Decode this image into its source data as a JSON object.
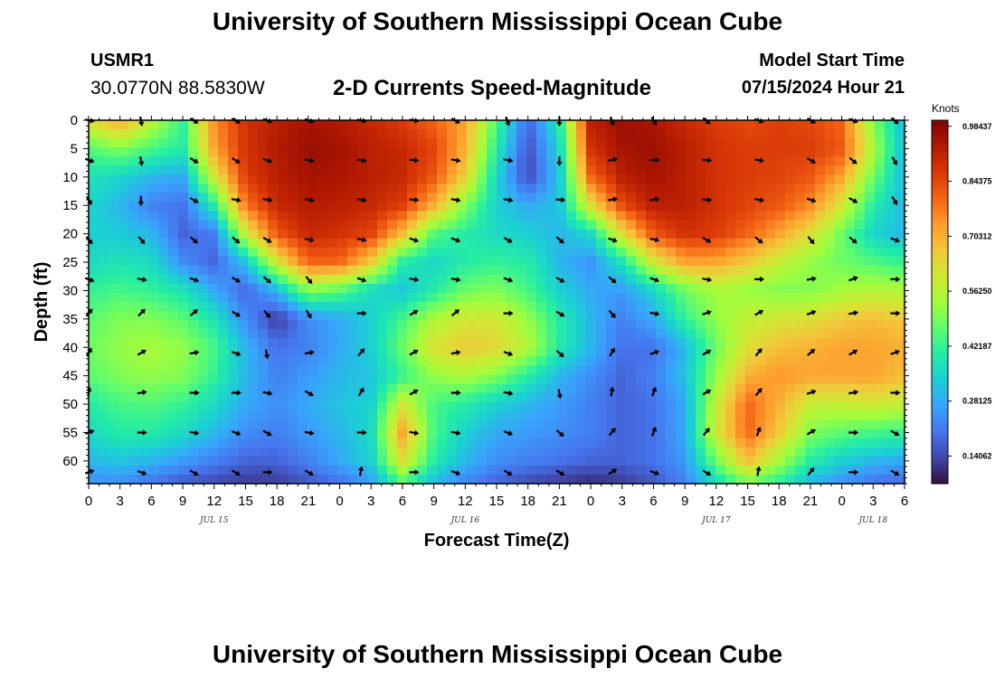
{
  "header": {
    "title": "University of Southern Mississippi Ocean Cube",
    "station_id": "USMR1",
    "station_location": "30.0770N  88.5830W",
    "plot_title": "2-D Currents Speed-Magnitude",
    "model_start_label": "Model Start Time",
    "model_start_value": "07/15/2024 Hour 21"
  },
  "footer": {
    "title": "University of Southern Mississippi Ocean Cube"
  },
  "chart_data": {
    "type": "heatmap",
    "title": "2-D Currents Speed-Magnitude",
    "xlabel": "Forecast Time(Z)",
    "ylabel": "Depth (ft)",
    "x_tick_labels": [
      "0",
      "3",
      "6",
      "9",
      "12",
      "15",
      "18",
      "21",
      "0",
      "3",
      "6",
      "9",
      "12",
      "15",
      "18",
      "21",
      "0",
      "3",
      "6",
      "9",
      "12",
      "15",
      "18",
      "21",
      "0",
      "3",
      "6"
    ],
    "x_date_labels": [
      {
        "label": "JUL 15",
        "tick_index": 4
      },
      {
        "label": "JUL 16",
        "tick_index": 12
      },
      {
        "label": "JUL 17",
        "tick_index": 20
      },
      {
        "label": "JUL 18",
        "tick_index": 25
      }
    ],
    "y_tick_labels": [
      "0",
      "5",
      "10",
      "15",
      "20",
      "25",
      "30",
      "35",
      "40",
      "45",
      "50",
      "55",
      "60"
    ],
    "ylim": [
      0,
      64
    ],
    "colorbar": {
      "unit": "Knots",
      "range": [
        0.07,
        1.0
      ],
      "tick_labels": [
        "0.14062",
        "0.28125",
        "0.42187",
        "0.56250",
        "0.70312",
        "0.84375",
        "0.98437"
      ],
      "tick_values": [
        0.14062,
        0.28125,
        0.42187,
        0.5625,
        0.70312,
        0.84375,
        0.98437
      ],
      "colormap": [
        "#30123b",
        "#4145ab",
        "#4675ed",
        "#39a2fc",
        "#1bcfd4",
        "#24eca6",
        "#61fc6c",
        "#a4fc3b",
        "#d1e834",
        "#f3c63a",
        "#fe9b2d",
        "#f36315",
        "#d93807",
        "#b11901",
        "#7a0403"
      ]
    },
    "speed_depths_ft": [
      0,
      5,
      10,
      15,
      20,
      25,
      30,
      35,
      40,
      45,
      50,
      55,
      60,
      64
    ],
    "speed_hours": [
      0,
      3,
      6,
      9,
      12,
      15,
      18,
      21,
      24,
      27,
      30,
      33,
      36,
      39,
      42,
      45,
      48,
      51,
      54,
      57,
      60,
      63,
      66,
      69,
      72,
      75,
      78
    ],
    "speed_knots": [
      [
        0.62,
        0.72,
        0.58,
        0.42,
        0.75,
        0.88,
        0.92,
        0.95,
        0.93,
        0.9,
        0.86,
        0.8,
        0.72,
        0.45,
        0.18,
        0.4,
        0.92,
        0.96,
        0.94,
        0.9,
        0.86,
        0.84,
        0.86,
        0.84,
        0.8,
        0.5,
        0.3
      ],
      [
        0.45,
        0.5,
        0.44,
        0.4,
        0.72,
        0.88,
        0.93,
        0.96,
        0.95,
        0.92,
        0.9,
        0.85,
        0.7,
        0.4,
        0.15,
        0.35,
        0.88,
        0.95,
        0.96,
        0.92,
        0.88,
        0.86,
        0.86,
        0.86,
        0.82,
        0.55,
        0.3
      ],
      [
        0.38,
        0.35,
        0.3,
        0.28,
        0.6,
        0.86,
        0.92,
        0.95,
        0.94,
        0.92,
        0.9,
        0.82,
        0.65,
        0.35,
        0.14,
        0.32,
        0.8,
        0.92,
        0.95,
        0.92,
        0.88,
        0.86,
        0.85,
        0.82,
        0.72,
        0.48,
        0.3
      ],
      [
        0.35,
        0.3,
        0.22,
        0.2,
        0.4,
        0.78,
        0.9,
        0.93,
        0.92,
        0.9,
        0.86,
        0.7,
        0.5,
        0.34,
        0.28,
        0.32,
        0.62,
        0.84,
        0.92,
        0.92,
        0.88,
        0.85,
        0.82,
        0.75,
        0.6,
        0.4,
        0.3
      ],
      [
        0.34,
        0.33,
        0.3,
        0.18,
        0.22,
        0.58,
        0.82,
        0.9,
        0.88,
        0.85,
        0.68,
        0.45,
        0.4,
        0.36,
        0.34,
        0.3,
        0.36,
        0.62,
        0.82,
        0.88,
        0.86,
        0.8,
        0.72,
        0.62,
        0.48,
        0.35,
        0.3
      ],
      [
        0.36,
        0.38,
        0.36,
        0.24,
        0.18,
        0.32,
        0.6,
        0.8,
        0.8,
        0.66,
        0.4,
        0.35,
        0.4,
        0.42,
        0.4,
        0.3,
        0.25,
        0.38,
        0.6,
        0.72,
        0.72,
        0.66,
        0.58,
        0.52,
        0.48,
        0.45,
        0.42
      ],
      [
        0.42,
        0.44,
        0.42,
        0.38,
        0.28,
        0.18,
        0.3,
        0.5,
        0.46,
        0.36,
        0.32,
        0.4,
        0.48,
        0.5,
        0.44,
        0.34,
        0.28,
        0.26,
        0.35,
        0.48,
        0.54,
        0.52,
        0.5,
        0.5,
        0.54,
        0.56,
        0.55
      ],
      [
        0.46,
        0.5,
        0.5,
        0.46,
        0.38,
        0.24,
        0.12,
        0.24,
        0.28,
        0.34,
        0.44,
        0.55,
        0.6,
        0.6,
        0.52,
        0.4,
        0.3,
        0.22,
        0.28,
        0.42,
        0.52,
        0.58,
        0.6,
        0.62,
        0.66,
        0.68,
        0.66
      ],
      [
        0.48,
        0.52,
        0.54,
        0.52,
        0.44,
        0.3,
        0.2,
        0.22,
        0.28,
        0.34,
        0.48,
        0.62,
        0.66,
        0.64,
        0.56,
        0.4,
        0.3,
        0.2,
        0.2,
        0.3,
        0.48,
        0.62,
        0.68,
        0.7,
        0.72,
        0.72,
        0.7
      ],
      [
        0.46,
        0.5,
        0.52,
        0.5,
        0.42,
        0.3,
        0.22,
        0.26,
        0.3,
        0.32,
        0.42,
        0.52,
        0.55,
        0.5,
        0.4,
        0.3,
        0.24,
        0.18,
        0.22,
        0.32,
        0.52,
        0.7,
        0.74,
        0.72,
        0.72,
        0.72,
        0.68
      ],
      [
        0.4,
        0.44,
        0.45,
        0.42,
        0.36,
        0.28,
        0.24,
        0.28,
        0.32,
        0.34,
        0.6,
        0.44,
        0.4,
        0.34,
        0.3,
        0.26,
        0.22,
        0.18,
        0.2,
        0.28,
        0.58,
        0.8,
        0.7,
        0.58,
        0.58,
        0.6,
        0.58
      ],
      [
        0.36,
        0.4,
        0.4,
        0.36,
        0.3,
        0.24,
        0.22,
        0.26,
        0.3,
        0.36,
        0.72,
        0.44,
        0.34,
        0.28,
        0.26,
        0.24,
        0.22,
        0.18,
        0.2,
        0.28,
        0.6,
        0.8,
        0.66,
        0.5,
        0.46,
        0.44,
        0.42
      ],
      [
        0.3,
        0.32,
        0.3,
        0.26,
        0.22,
        0.18,
        0.18,
        0.22,
        0.28,
        0.34,
        0.62,
        0.4,
        0.3,
        0.24,
        0.22,
        0.2,
        0.18,
        0.18,
        0.2,
        0.26,
        0.48,
        0.68,
        0.54,
        0.4,
        0.34,
        0.3,
        0.28
      ],
      [
        0.24,
        0.24,
        0.2,
        0.16,
        0.14,
        0.12,
        0.12,
        0.16,
        0.2,
        0.26,
        0.44,
        0.3,
        0.22,
        0.18,
        0.14,
        0.12,
        0.1,
        0.12,
        0.16,
        0.22,
        0.36,
        0.48,
        0.4,
        0.3,
        0.24,
        0.2,
        0.18
      ]
    ],
    "vector_depths_ft": [
      0,
      7,
      14,
      21,
      28,
      34,
      41,
      48,
      55,
      62
    ],
    "vector_hours": [
      0,
      5,
      10,
      14,
      17,
      21,
      26,
      31,
      35,
      40,
      45,
      50,
      54,
      59,
      64,
      69,
      73,
      77
    ],
    "vector_directions_deg": [
      [
        100,
        170,
        120,
        120,
        110,
        110,
        100,
        100,
        120,
        160,
        180,
        160,
        150,
        130,
        110,
        120,
        110,
        130
      ],
      [
        110,
        170,
        120,
        120,
        110,
        100,
        100,
        95,
        100,
        100,
        180,
        80,
        90,
        95,
        100,
        120,
        130,
        150
      ],
      [
        150,
        180,
        120,
        100,
        100,
        100,
        100,
        95,
        100,
        100,
        95,
        80,
        80,
        95,
        100,
        110,
        120,
        150
      ],
      [
        140,
        140,
        130,
        130,
        120,
        100,
        100,
        110,
        110,
        120,
        130,
        110,
        100,
        120,
        130,
        140,
        130,
        110
      ],
      [
        110,
        100,
        110,
        120,
        130,
        140,
        110,
        100,
        100,
        110,
        120,
        130,
        110,
        100,
        90,
        80,
        70,
        90
      ],
      [
        40,
        45,
        50,
        120,
        140,
        150,
        90,
        60,
        50,
        90,
        120,
        140,
        100,
        70,
        60,
        70,
        80,
        90
      ],
      [
        30,
        60,
        80,
        110,
        170,
        80,
        40,
        60,
        80,
        110,
        130,
        30,
        70,
        60,
        40,
        50,
        60,
        70
      ],
      [
        10,
        80,
        90,
        90,
        100,
        120,
        30,
        60,
        90,
        100,
        170,
        10,
        20,
        60,
        40,
        70,
        80,
        90
      ],
      [
        70,
        90,
        100,
        110,
        120,
        100,
        90,
        100,
        100,
        110,
        130,
        40,
        20,
        40,
        20,
        60,
        90,
        120
      ],
      [
        70,
        110,
        120,
        120,
        90,
        120,
        10,
        90,
        110,
        120,
        120,
        60,
        110,
        120,
        10,
        40,
        90,
        120
      ]
    ]
  }
}
